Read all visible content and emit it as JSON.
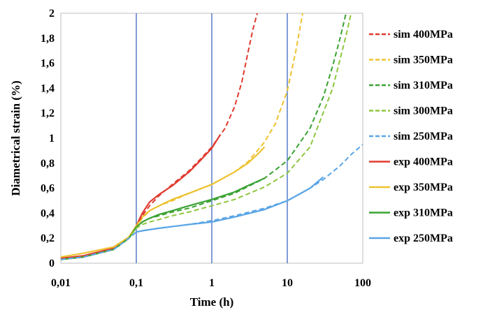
{
  "chart_data": {
    "type": "line",
    "title": "",
    "xlabel": "Time (h)",
    "ylabel": "Diametrical strain (%)",
    "x_scale": "log",
    "xlim": [
      0.01,
      100
    ],
    "ylim": [
      0,
      2
    ],
    "x_ticks": [
      0.01,
      0.1,
      1,
      10,
      100
    ],
    "x_tick_labels": [
      "0,01",
      "0,1",
      "1",
      "10",
      "100"
    ],
    "y_ticks": [
      0,
      0.2,
      0.4,
      0.6,
      0.8,
      1,
      1.2,
      1.4,
      1.6,
      1.8,
      2
    ],
    "y_tick_labels": [
      "0",
      "0,2",
      "0,4",
      "0,6",
      "0,8",
      "1",
      "1,2",
      "1,4",
      "1,6",
      "1,8",
      "2"
    ],
    "grid": "vertical major gridlines (blue)",
    "legend_position": "right",
    "series": [
      {
        "name": "sim 400MPa",
        "kind": "sim",
        "color": "#e03a2e",
        "x": [
          0.01,
          0.02,
          0.05,
          0.08,
          0.1,
          0.12,
          0.15,
          0.2,
          0.3,
          0.5,
          0.7,
          1,
          1.5,
          2,
          2.5,
          3,
          3.5,
          4
        ],
        "y": [
          0.03,
          0.05,
          0.11,
          0.2,
          0.29,
          0.38,
          0.46,
          0.54,
          0.63,
          0.74,
          0.83,
          0.93,
          1.08,
          1.25,
          1.45,
          1.68,
          1.87,
          2.0
        ]
      },
      {
        "name": "sim 350MPa",
        "kind": "sim",
        "color": "#eec22e",
        "x": [
          0.01,
          0.02,
          0.05,
          0.08,
          0.1,
          0.12,
          0.15,
          0.2,
          0.3,
          0.5,
          1,
          2,
          3,
          5,
          7,
          10,
          13,
          16
        ],
        "y": [
          0.03,
          0.05,
          0.11,
          0.2,
          0.29,
          0.36,
          0.42,
          0.46,
          0.5,
          0.56,
          0.63,
          0.73,
          0.81,
          0.97,
          1.12,
          1.38,
          1.7,
          2.0
        ]
      },
      {
        "name": "sim 310MPa",
        "kind": "sim",
        "color": "#3aa233",
        "x": [
          0.01,
          0.02,
          0.05,
          0.08,
          0.1,
          0.12,
          0.15,
          0.2,
          0.3,
          0.5,
          1,
          2,
          5,
          10,
          20,
          30,
          40,
          50,
          60
        ],
        "y": [
          0.03,
          0.05,
          0.11,
          0.2,
          0.29,
          0.33,
          0.36,
          0.38,
          0.41,
          0.44,
          0.5,
          0.56,
          0.68,
          0.82,
          1.08,
          1.33,
          1.58,
          1.8,
          2.0
        ]
      },
      {
        "name": "sim 300MPa",
        "kind": "sim",
        "color": "#8dc63f",
        "x": [
          0.01,
          0.02,
          0.05,
          0.08,
          0.1,
          0.12,
          0.15,
          0.2,
          0.3,
          0.5,
          1,
          2,
          5,
          10,
          20,
          40,
          60,
          70
        ],
        "y": [
          0.03,
          0.05,
          0.11,
          0.2,
          0.28,
          0.31,
          0.33,
          0.35,
          0.38,
          0.41,
          0.46,
          0.51,
          0.61,
          0.72,
          0.93,
          1.4,
          1.82,
          2.0
        ]
      },
      {
        "name": "sim 250MPa",
        "kind": "sim",
        "color": "#5aa5e6",
        "x": [
          0.01,
          0.02,
          0.05,
          0.08,
          0.1,
          0.12,
          0.2,
          0.5,
          1,
          2,
          5,
          10,
          20,
          30,
          50,
          70,
          100
        ],
        "y": [
          0.03,
          0.05,
          0.11,
          0.2,
          0.25,
          0.26,
          0.28,
          0.31,
          0.34,
          0.38,
          0.44,
          0.5,
          0.6,
          0.67,
          0.78,
          0.87,
          0.95
        ]
      },
      {
        "name": "exp 400MPa",
        "kind": "exp",
        "color": "#e03a2e",
        "x": [
          0.01,
          0.02,
          0.05,
          0.08,
          0.1,
          0.12,
          0.15,
          0.2,
          0.3,
          0.5,
          0.7,
          1,
          1.3
        ],
        "y": [
          0.04,
          0.06,
          0.12,
          0.2,
          0.3,
          0.4,
          0.49,
          0.55,
          0.62,
          0.73,
          0.82,
          0.92,
          1.03
        ]
      },
      {
        "name": "exp 350MPa",
        "kind": "exp",
        "color": "#eec22e",
        "x": [
          0.01,
          0.02,
          0.05,
          0.08,
          0.1,
          0.12,
          0.15,
          0.2,
          0.3,
          0.5,
          1,
          2,
          3,
          4,
          5
        ],
        "y": [
          0.05,
          0.08,
          0.13,
          0.21,
          0.3,
          0.37,
          0.42,
          0.46,
          0.51,
          0.56,
          0.63,
          0.73,
          0.8,
          0.87,
          0.93
        ]
      },
      {
        "name": "exp 310MPa",
        "kind": "exp",
        "color": "#3aa233",
        "x": [
          0.01,
          0.02,
          0.05,
          0.08,
          0.1,
          0.12,
          0.15,
          0.2,
          0.3,
          0.5,
          1,
          2,
          3,
          5
        ],
        "y": [
          0.03,
          0.05,
          0.11,
          0.2,
          0.29,
          0.33,
          0.36,
          0.39,
          0.42,
          0.46,
          0.51,
          0.57,
          0.62,
          0.68
        ]
      },
      {
        "name": "exp 250MPa",
        "kind": "exp",
        "color": "#5aa5e6",
        "x": [
          0.1,
          0.12,
          0.2,
          0.5,
          1,
          2,
          5,
          10,
          20,
          30
        ],
        "y": [
          0.25,
          0.26,
          0.28,
          0.31,
          0.33,
          0.37,
          0.43,
          0.5,
          0.6,
          0.69
        ]
      }
    ]
  }
}
